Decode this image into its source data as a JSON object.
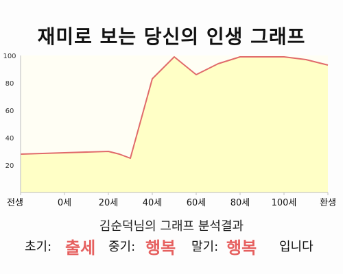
{
  "title": "재미로 보는 당신의 인생 그래프",
  "chart_data": {
    "type": "area",
    "title": "재미로 보는 당신의 인생 그래프",
    "xlabel": "",
    "ylabel": "",
    "x_ticks": [
      "전생",
      "0세",
      "20세",
      "40세",
      "60세",
      "80세",
      "100세",
      "환생"
    ],
    "y_ticks": [
      "20",
      "40",
      "60",
      "80",
      "100"
    ],
    "ylim": [
      0,
      100
    ],
    "grid": false,
    "line_color": "#e06a6a",
    "fill_color": "#ffffc6",
    "series": [
      {
        "x": [
          -20,
          0,
          20,
          25,
          30,
          40,
          45,
          50,
          60,
          70,
          80,
          90,
          100,
          110,
          120
        ],
        "values": [
          28,
          29,
          30,
          28,
          25,
          83,
          91,
          99,
          86,
          94,
          99,
          99,
          99,
          97,
          93
        ]
      }
    ]
  },
  "caption": "김순덕님의 그래프 분석결과",
  "summary": {
    "early_label": "초기:",
    "early_value": "출세",
    "mid_label": "중기:",
    "mid_value": "행복",
    "late_label": "말기:",
    "late_value": "행복",
    "ending": "입니다"
  },
  "colors": {
    "accent": "#e6605f",
    "background": "#fdfdfd"
  }
}
